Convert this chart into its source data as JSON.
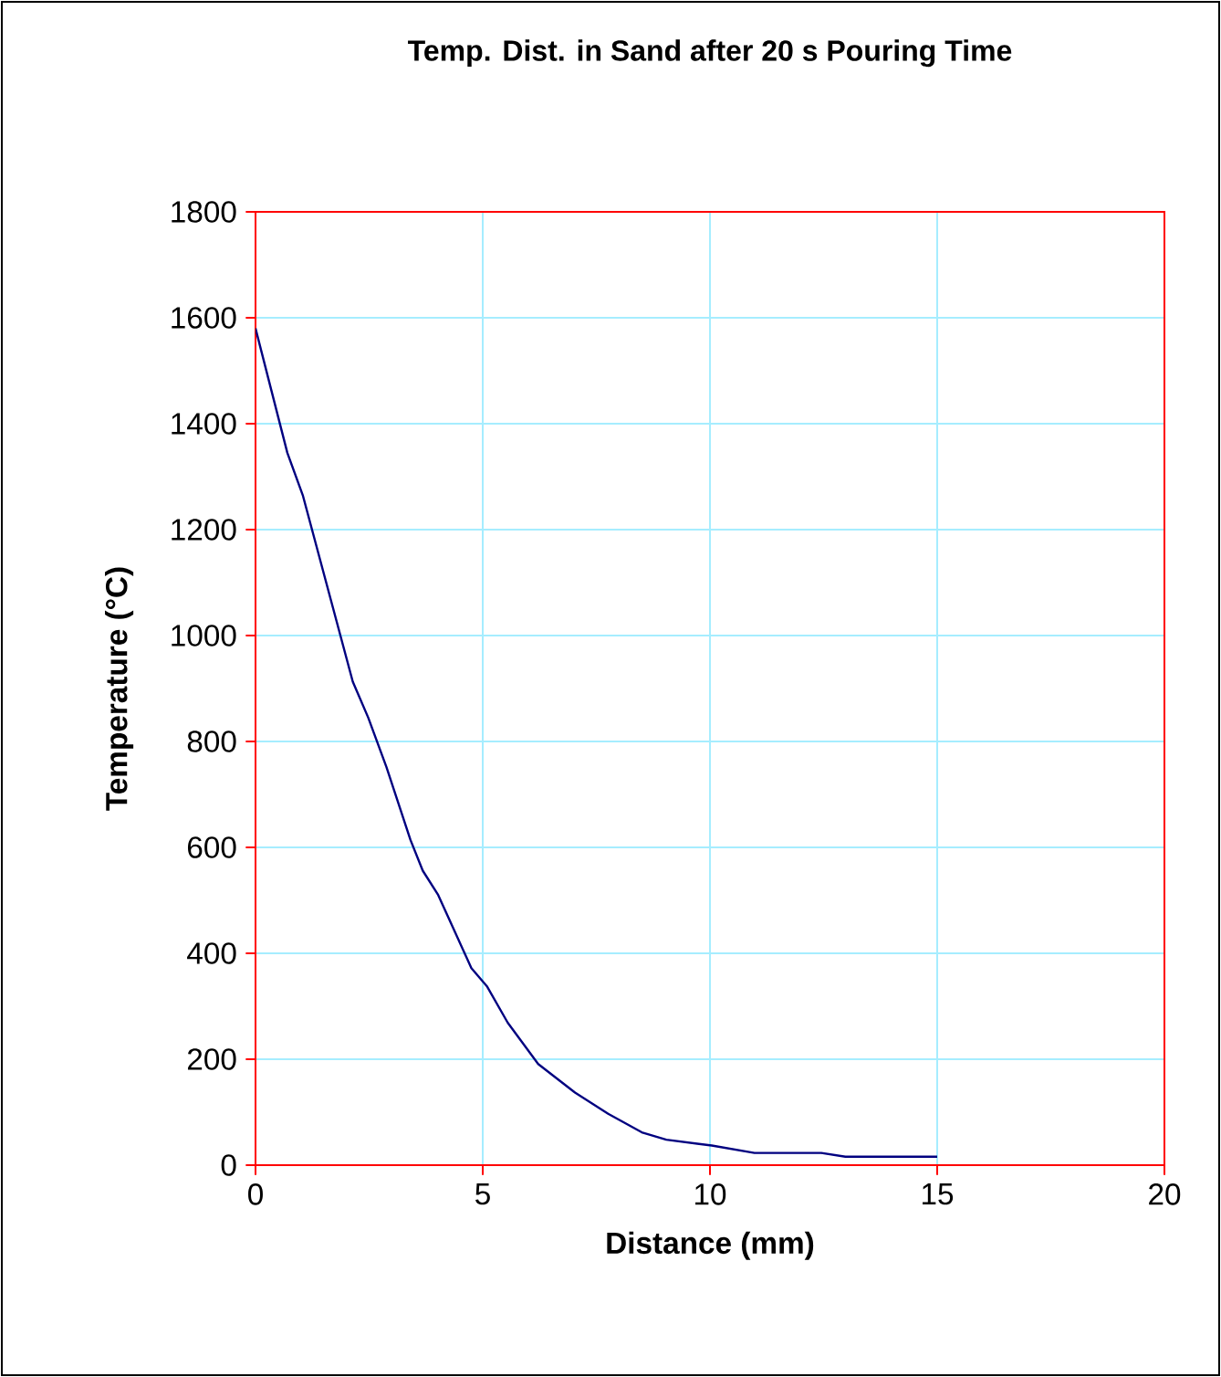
{
  "chart_data": {
    "type": "line",
    "title": "Temp. Dist. in Sand after 20 s Pouring Time",
    "xlabel": "Distance (mm)",
    "ylabel": "Temperature (°C)",
    "xlim": [
      0,
      20
    ],
    "ylim": [
      0,
      1800
    ],
    "xticks": [
      0,
      5,
      10,
      15,
      20
    ],
    "yticks": [
      0,
      200,
      400,
      600,
      800,
      1000,
      1200,
      1400,
      1600,
      1800
    ],
    "grid": true,
    "series": [
      {
        "color": "#000080",
        "x": [
          0,
          0.7,
          1.04,
          2.14,
          2.48,
          2.88,
          3.41,
          3.68,
          4.02,
          4.75,
          5.09,
          5.55,
          6.22,
          7.03,
          7.76,
          8.5,
          9.04,
          10.04,
          10.98,
          12.45,
          12.98,
          15
        ],
        "values": [
          1580,
          1345,
          1265,
          913,
          845,
          752,
          614,
          556,
          510,
          372,
          338,
          269,
          191,
          137,
          97,
          62,
          48,
          37,
          23,
          23,
          16,
          16
        ]
      }
    ]
  }
}
